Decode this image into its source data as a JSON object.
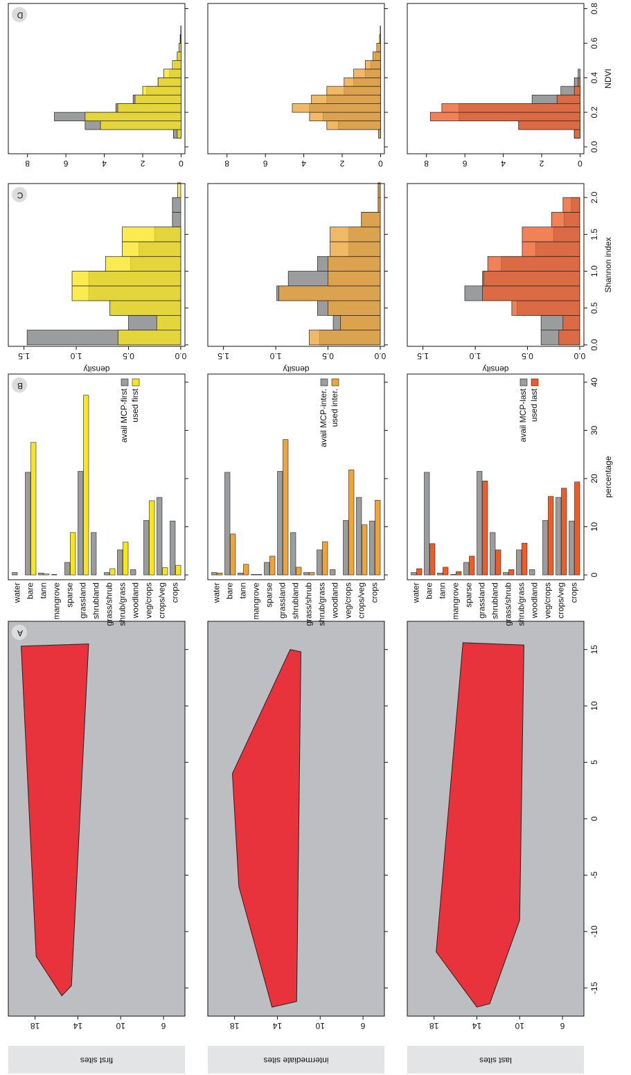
{
  "row_labels": [
    "first sites",
    "intermediate sites",
    "last sites"
  ],
  "chart_data": [
    {
      "type": "map",
      "panel": "A",
      "xlim": [
        -17.5,
        17.5
      ],
      "ylim": [
        4,
        20.5
      ],
      "xticks": [
        -15,
        -10,
        -5,
        0,
        5,
        10,
        15
      ],
      "yticks": [
        6,
        10,
        14,
        18
      ],
      "xtick_labels": false,
      "land": "#bdbec1",
      "color": "#e8333d",
      "mcp": {
        "lon": [
          -15.7,
          -12.2,
          15.3,
          15.5,
          -14.8
        ],
        "lat": [
          15.5,
          17.9,
          19.3,
          13.0,
          14.6
        ]
      }
    },
    {
      "type": "bar",
      "panel": "B",
      "xlim": [
        -1,
        41.7
      ],
      "xticks": [
        0,
        10,
        20,
        30,
        40
      ],
      "xtick_labels": false,
      "categories": [
        "water",
        "bare",
        "tann",
        "mangrove",
        "sparse",
        "grassland",
        "shrubland",
        "grass/shrub",
        "shrub/grass",
        "woodland",
        "veg/crops",
        "crops/veg",
        "crops"
      ],
      "series": [
        {
          "name": "avail MCP-first",
          "color": "#9b9c9e",
          "values": [
            0.5,
            21.3,
            0.4,
            0.1,
            2.6,
            21.5,
            8.8,
            0.5,
            5.2,
            1.1,
            11.3,
            16.1,
            11.2
          ]
        },
        {
          "name": "used first",
          "color": "#f7e51f",
          "values": [
            0,
            27.5,
            0.2,
            0,
            8.8,
            37.3,
            0,
            1.3,
            6.8,
            0,
            15.4,
            1.5,
            2.0
          ]
        }
      ]
    },
    {
      "type": "histogram",
      "panel": "C",
      "ylabel": "density",
      "xlim": [
        -0.02,
        2.19
      ],
      "ylim": [
        -0.04,
        1.65
      ],
      "xticks": [
        {
          "value": 0,
          "label": "0.0"
        },
        0.5,
        {
          "value": 1,
          "label": "1.0"
        },
        1.5,
        {
          "value": 2,
          "label": "2.0"
        }
      ],
      "yticks": [
        {
          "value": 0,
          "label": "0.0"
        },
        0.5,
        {
          "value": 1,
          "label": "1.0"
        },
        1.5
      ],
      "xtick_labels": false,
      "bins": [
        0,
        0.2,
        0.4,
        0.6,
        0.8,
        1.0,
        1.2,
        1.4,
        1.6,
        1.8,
        2.0,
        2.2
      ],
      "series": [
        {
          "color": "#9b9c9e",
          "values": [
            1.47,
            0.5,
            0.67,
            0.88,
            0.88,
            0.48,
            0.4,
            0.25,
            0.08,
            0.08,
            0
          ]
        },
        {
          "color": "#f7e51f",
          "values": [
            0.6,
            0.23,
            0.68,
            1.04,
            1.04,
            0.72,
            0.56,
            0.56,
            0,
            0,
            0.03
          ]
        }
      ]
    },
    {
      "type": "histogram",
      "panel": "D",
      "xlim": [
        -0.04,
        0.83
      ],
      "ylim": [
        -0.2,
        9
      ],
      "xticks": [
        {
          "value": 0,
          "label": "0.0"
        },
        0.2,
        0.4,
        0.6,
        0.8
      ],
      "yticks": [
        0,
        2,
        4,
        6,
        8
      ],
      "xtick_labels": false,
      "bins": [
        0,
        0.05,
        0.1,
        0.15,
        0.2,
        0.25,
        0.3,
        0.35,
        0.4,
        0.45,
        0.5,
        0.55,
        0.6,
        0.65,
        0.7
      ],
      "series": [
        {
          "color": "#9b9c9e",
          "values": [
            0,
            0.4,
            5.0,
            6.6,
            3.4,
            2.5,
            1.8,
            1.2,
            0.6,
            0.35,
            0.2,
            0.1,
            0.05,
            0.02
          ]
        },
        {
          "color": "#f7e51f",
          "values": [
            0,
            0.2,
            4.2,
            5.0,
            3.3,
            2.4,
            2.0,
            1.2,
            0.9,
            0.45,
            0.2,
            0.1,
            0.03,
            0
          ]
        }
      ]
    },
    {
      "type": "map",
      "xlim": [
        -17.5,
        17.5
      ],
      "ylim": [
        4,
        20.5
      ],
      "xticks": [
        -15,
        -10,
        -5,
        0,
        5,
        10,
        15
      ],
      "yticks": [
        6,
        10,
        14,
        18
      ],
      "xtick_labels": false,
      "land": "#bdbec1",
      "color": "#e8333d",
      "mcp": {
        "lon": [
          -16.7,
          -6,
          4,
          15.0,
          14.8,
          -16.2
        ],
        "lat": [
          14.5,
          17.6,
          18.2,
          12.8,
          11.8,
          12.2
        ]
      }
    },
    {
      "type": "bar",
      "xlim": [
        -1,
        41.7
      ],
      "xticks": [
        0,
        10,
        20,
        30,
        40
      ],
      "xtick_labels": false,
      "categories": [
        "water",
        "bare",
        "tann",
        "mangrove",
        "sparse",
        "grassland",
        "shrubland",
        "grass/shrub",
        "shrub/grass",
        "woodland",
        "veg/crops",
        "crops/veg",
        "crops"
      ],
      "series": [
        {
          "name": "avail MCP-inter.",
          "color": "#9b9c9e",
          "values": [
            0.5,
            21.3,
            0.4,
            0.1,
            2.6,
            21.5,
            8.8,
            0.5,
            5.2,
            1.1,
            11.3,
            16.1,
            11.2
          ]
        },
        {
          "name": "used inter.",
          "color": "#eda43a",
          "values": [
            0.4,
            8.5,
            2.2,
            0.1,
            3.9,
            28.1,
            1.6,
            0.5,
            6.9,
            0,
            21.8,
            10.4,
            15.5
          ]
        }
      ]
    },
    {
      "type": "histogram",
      "ylabel": "density",
      "xlim": [
        -0.02,
        2.19
      ],
      "ylim": [
        -0.04,
        1.65
      ],
      "xticks": [
        {
          "value": 0,
          "label": "0.0"
        },
        0.5,
        {
          "value": 1,
          "label": "1.0"
        },
        1.5,
        {
          "value": 2,
          "label": "2.0"
        }
      ],
      "yticks": [
        {
          "value": 0,
          "label": "0.0"
        },
        0.5,
        {
          "value": 1,
          "label": "1.0"
        },
        1.5
      ],
      "xtick_labels": false,
      "bins": [
        0,
        0.2,
        0.4,
        0.6,
        0.8,
        1.0,
        1.2,
        1.4,
        1.6,
        1.8,
        2.0,
        2.2
      ],
      "series": [
        {
          "color": "#9b9c9e",
          "values": [
            0.58,
            0.45,
            0.6,
            0.99,
            0.88,
            0.6,
            0.3,
            0.3,
            0.18,
            0.02,
            0.02
          ]
        },
        {
          "color": "#eda43a",
          "values": [
            0.68,
            0.38,
            0.5,
            0.97,
            0.5,
            0.5,
            0.48,
            0.48,
            0.18,
            0.02,
            0.02
          ]
        }
      ]
    },
    {
      "type": "histogram",
      "xlim": [
        -0.04,
        0.83
      ],
      "ylim": [
        -0.2,
        9
      ],
      "xticks": [
        {
          "value": 0,
          "label": "0.0"
        },
        0.2,
        0.4,
        0.6,
        0.8
      ],
      "yticks": [
        0,
        2,
        4,
        6,
        8
      ],
      "xtick_labels": false,
      "bins": [
        0,
        0.05,
        0.1,
        0.15,
        0.2,
        0.25,
        0.3,
        0.35,
        0.4,
        0.45,
        0.5,
        0.55,
        0.6,
        0.65,
        0.7
      ],
      "series": [
        {
          "color": "#9b9c9e",
          "values": [
            0,
            0.1,
            2.2,
            3.0,
            3.7,
            2.8,
            1.9,
            1.4,
            0.8,
            0.5,
            0.3,
            0.1,
            0.05,
            0.02
          ]
        },
        {
          "color": "#eda43a",
          "values": [
            0,
            0.1,
            2.8,
            3.7,
            4.6,
            3.6,
            2.8,
            1.9,
            1.4,
            0.8,
            0.4,
            0.2,
            0.05,
            0
          ]
        }
      ]
    },
    {
      "type": "map",
      "xlim": [
        -17.5,
        17.5
      ],
      "ylim": [
        4,
        20.5
      ],
      "xticks": [
        -15,
        -10,
        -5,
        0,
        5,
        10,
        15
      ],
      "yticks": [
        6,
        10,
        14,
        18
      ],
      "xtick_labels": true,
      "land": "#bdbec1",
      "color": "#e8333d",
      "mcp": {
        "lon": [
          -16.7,
          -11.8,
          15.6,
          15.4,
          -9,
          -16.4
        ],
        "lat": [
          14.0,
          17.8,
          15.3,
          9.6,
          10.0,
          12.8
        ]
      }
    },
    {
      "type": "bar",
      "xlabel": "percentage",
      "xlim": [
        -1,
        41.7
      ],
      "xticks": [
        0,
        10,
        20,
        30,
        40
      ],
      "xtick_labels": true,
      "categories": [
        "water",
        "bare",
        "tann",
        "mangrove",
        "sparse",
        "grassland",
        "shrubland",
        "grass/shrub",
        "shrub/grass",
        "woodland",
        "veg/crops",
        "crops/veg",
        "crops"
      ],
      "series": [
        {
          "name": "avail MCP-last",
          "color": "#9b9c9e",
          "values": [
            0.5,
            21.3,
            0.4,
            0.1,
            2.6,
            21.5,
            8.8,
            0.5,
            5.2,
            1.1,
            11.3,
            16.1,
            11.2
          ]
        },
        {
          "name": "used last",
          "color": "#ec5d2a",
          "values": [
            1.3,
            6.5,
            1.6,
            0.7,
            3.9,
            19.5,
            5.2,
            1.1,
            6.6,
            0,
            16.3,
            18.0,
            19.3
          ]
        }
      ]
    },
    {
      "type": "histogram",
      "ylabel": "density",
      "xlabel": "Shannon index",
      "xlim": [
        -0.02,
        2.19
      ],
      "ylim": [
        -0.04,
        1.65
      ],
      "xticks": [
        {
          "value": 0,
          "label": "0.0"
        },
        0.5,
        {
          "value": 1,
          "label": "1.0"
        },
        1.5,
        {
          "value": 2,
          "label": "2.0"
        }
      ],
      "yticks": [
        {
          "value": 0,
          "label": "0.0"
        },
        0.5,
        {
          "value": 1,
          "label": "1.0"
        },
        1.5
      ],
      "xtick_labels": true,
      "bins": [
        0,
        0.2,
        0.4,
        0.6,
        0.8,
        1.0,
        1.2,
        1.4,
        1.6,
        1.8,
        2.0,
        2.2
      ],
      "series": [
        {
          "color": "#9b9c9e",
          "values": [
            0.37,
            0.37,
            0.6,
            1.1,
            0.93,
            0.75,
            0.42,
            0.25,
            0.15,
            0.08,
            0
          ]
        },
        {
          "color": "#ec5d2a",
          "values": [
            0.2,
            0.16,
            0.65,
            0.93,
            0.92,
            0.88,
            0.55,
            0.55,
            0.27,
            0.16,
            0
          ]
        }
      ]
    },
    {
      "type": "histogram",
      "xlabel": "NDVI",
      "xlim": [
        -0.04,
        0.83
      ],
      "ylim": [
        -0.2,
        9
      ],
      "xticks": [
        {
          "value": 0,
          "label": "0.0"
        },
        0.2,
        0.4,
        0.6,
        0.8
      ],
      "yticks": [
        0,
        2,
        4,
        6,
        8
      ],
      "xtick_labels": true,
      "bins": [
        0,
        0.05,
        0.1,
        0.15,
        0.2,
        0.25,
        0.3,
        0.35,
        0.4,
        0.45,
        0.5,
        0.55,
        0.6,
        0.65,
        0.7
      ],
      "series": [
        {
          "color": "#9b9c9e",
          "values": [
            0,
            0.3,
            3.2,
            6.3,
            6.3,
            2.5,
            1.0,
            0.3,
            0.1,
            0,
            0,
            0,
            0,
            0
          ]
        },
        {
          "color": "#ec5d2a",
          "values": [
            0,
            0.3,
            3.2,
            7.8,
            7.2,
            1.2,
            0.3,
            0.1,
            0,
            0,
            0,
            0,
            0,
            0
          ]
        }
      ]
    }
  ]
}
